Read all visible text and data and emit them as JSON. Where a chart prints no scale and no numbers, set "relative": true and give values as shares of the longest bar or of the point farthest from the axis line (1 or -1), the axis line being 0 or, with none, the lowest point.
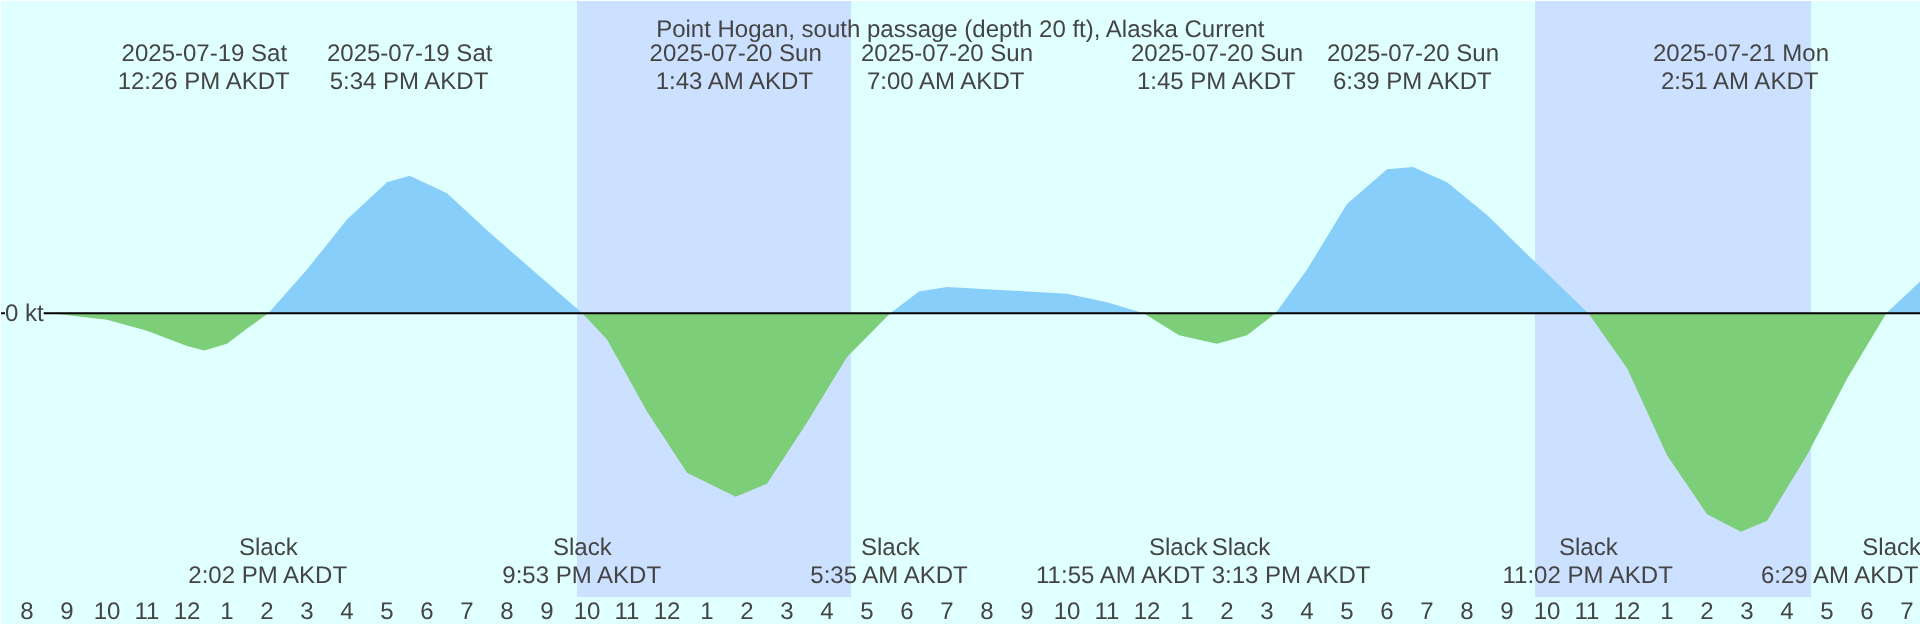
{
  "chart_data": {
    "type": "area",
    "relative": true,
    "title": "Point Hogan, south passage (depth 20 ft), Alaska Current",
    "xlim": [
      "2025-07-19T07:21",
      "2025-07-21T07:21"
    ],
    "xticks": [
      {
        "value": "2025-07-19T08:00",
        "label": "8"
      },
      {
        "value": "2025-07-19T09:00",
        "label": "9"
      },
      {
        "value": "2025-07-19T10:00",
        "label": "10"
      },
      {
        "value": "2025-07-19T11:00",
        "label": "11"
      },
      {
        "value": "2025-07-19T12:00",
        "label": "12"
      },
      {
        "value": "2025-07-19T13:00",
        "label": "1"
      },
      {
        "value": "2025-07-19T14:00",
        "label": "2"
      },
      {
        "value": "2025-07-19T15:00",
        "label": "3"
      },
      {
        "value": "2025-07-19T16:00",
        "label": "4"
      },
      {
        "value": "2025-07-19T17:00",
        "label": "5"
      },
      {
        "value": "2025-07-19T18:00",
        "label": "6"
      },
      {
        "value": "2025-07-19T19:00",
        "label": "7"
      },
      {
        "value": "2025-07-19T20:00",
        "label": "8"
      },
      {
        "value": "2025-07-19T21:00",
        "label": "9"
      },
      {
        "value": "2025-07-19T22:00",
        "label": "10"
      },
      {
        "value": "2025-07-19T23:00",
        "label": "11"
      },
      {
        "value": "2025-07-20T00:00",
        "label": "12"
      },
      {
        "value": "2025-07-20T01:00",
        "label": "1"
      },
      {
        "value": "2025-07-20T02:00",
        "label": "2"
      },
      {
        "value": "2025-07-20T03:00",
        "label": "3"
      },
      {
        "value": "2025-07-20T04:00",
        "label": "4"
      },
      {
        "value": "2025-07-20T05:00",
        "label": "5"
      },
      {
        "value": "2025-07-20T06:00",
        "label": "6"
      },
      {
        "value": "2025-07-20T07:00",
        "label": "7"
      },
      {
        "value": "2025-07-20T08:00",
        "label": "8"
      },
      {
        "value": "2025-07-20T09:00",
        "label": "9"
      },
      {
        "value": "2025-07-20T10:00",
        "label": "10"
      },
      {
        "value": "2025-07-20T11:00",
        "label": "11"
      },
      {
        "value": "2025-07-20T12:00",
        "label": "12"
      },
      {
        "value": "2025-07-20T13:00",
        "label": "1"
      },
      {
        "value": "2025-07-20T14:00",
        "label": "2"
      },
      {
        "value": "2025-07-20T15:00",
        "label": "3"
      },
      {
        "value": "2025-07-20T16:00",
        "label": "4"
      },
      {
        "value": "2025-07-20T17:00",
        "label": "5"
      },
      {
        "value": "2025-07-20T18:00",
        "label": "6"
      },
      {
        "value": "2025-07-20T19:00",
        "label": "7"
      },
      {
        "value": "2025-07-20T20:00",
        "label": "8"
      },
      {
        "value": "2025-07-20T21:00",
        "label": "9"
      },
      {
        "value": "2025-07-20T22:00",
        "label": "10"
      },
      {
        "value": "2025-07-20T23:00",
        "label": "11"
      },
      {
        "value": "2025-07-21T00:00",
        "label": "12"
      },
      {
        "value": "2025-07-21T01:00",
        "label": "1"
      },
      {
        "value": "2025-07-21T02:00",
        "label": "2"
      },
      {
        "value": "2025-07-21T03:00",
        "label": "3"
      },
      {
        "value": "2025-07-21T04:00",
        "label": "4"
      },
      {
        "value": "2025-07-21T05:00",
        "label": "5"
      },
      {
        "value": "2025-07-21T06:00",
        "label": "6"
      },
      {
        "value": "2025-07-21T07:00",
        "label": "7"
      }
    ],
    "series": [
      {
        "color": "#7ccf78",
        "x": [
          "2025-07-19T08:36",
          "2025-07-19T10:00",
          "2025-07-19T11:00",
          "2025-07-19T12:00",
          "2025-07-19T12:26",
          "2025-07-19T13:00",
          "2025-07-19T13:30",
          "2025-07-19T14:02"
        ],
        "values": [
          0,
          -0.03,
          -0.08,
          -0.15,
          -0.17,
          -0.14,
          -0.07,
          0
        ]
      },
      {
        "color": "#87cefa",
        "x": [
          "2025-07-19T14:02",
          "2025-07-19T15:00",
          "2025-07-19T16:00",
          "2025-07-19T17:00",
          "2025-07-19T17:34",
          "2025-07-19T18:30",
          "2025-07-19T19:30",
          "2025-07-19T20:30",
          "2025-07-19T21:53"
        ],
        "values": [
          0,
          0.2,
          0.43,
          0.6,
          0.63,
          0.55,
          0.38,
          0.22,
          0
        ]
      },
      {
        "color": "#7ccf78",
        "x": [
          "2025-07-19T21:53",
          "2025-07-19T22:30",
          "2025-07-19T23:30",
          "2025-07-20T00:30",
          "2025-07-20T01:43",
          "2025-07-20T02:30",
          "2025-07-20T03:30",
          "2025-07-20T04:30",
          "2025-07-20T05:35"
        ],
        "values": [
          0,
          -0.12,
          -0.45,
          -0.73,
          -0.84,
          -0.78,
          -0.5,
          -0.2,
          0
        ]
      },
      {
        "color": "#87cefa",
        "x": [
          "2025-07-20T05:35",
          "2025-07-20T06:18",
          "2025-07-20T07:00",
          "2025-07-20T08:00",
          "2025-07-20T09:00",
          "2025-07-20T10:00",
          "2025-07-20T11:00",
          "2025-07-20T11:55"
        ],
        "values": [
          0,
          0.1,
          0.12,
          0.11,
          0.1,
          0.09,
          0.05,
          0
        ]
      },
      {
        "color": "#7ccf78",
        "x": [
          "2025-07-20T11:55",
          "2025-07-20T12:48",
          "2025-07-20T13:45",
          "2025-07-20T14:30",
          "2025-07-20T15:13"
        ],
        "values": [
          0,
          -0.1,
          -0.14,
          -0.1,
          0
        ]
      },
      {
        "color": "#87cefa",
        "x": [
          "2025-07-20T15:13",
          "2025-07-20T16:00",
          "2025-07-20T17:00",
          "2025-07-20T18:00",
          "2025-07-20T18:39",
          "2025-07-20T19:30",
          "2025-07-20T20:30",
          "2025-07-20T21:30",
          "2025-07-20T23:02"
        ],
        "values": [
          0,
          0.2,
          0.5,
          0.66,
          0.67,
          0.6,
          0.45,
          0.27,
          0
        ]
      },
      {
        "color": "#7ccf78",
        "x": [
          "2025-07-20T23:02",
          "2025-07-21T00:00",
          "2025-07-21T01:00",
          "2025-07-21T02:00",
          "2025-07-21T02:51",
          "2025-07-21T03:30",
          "2025-07-21T04:30",
          "2025-07-21T05:30",
          "2025-07-21T06:29"
        ],
        "values": [
          0,
          -0.25,
          -0.65,
          -0.92,
          -1,
          -0.95,
          -0.65,
          -0.3,
          0
        ]
      },
      {
        "color": "#87cefa",
        "x": [
          "2025-07-21T06:29",
          "2025-07-21T07:21"
        ],
        "values": [
          0,
          0.15
        ]
      }
    ],
    "bands": [
      {
        "axis": "x",
        "from": "2025-07-19T21:45",
        "to": "2025-07-20T04:36",
        "color": "#cce0ff"
      },
      {
        "axis": "x",
        "from": "2025-07-20T21:42",
        "to": "2025-07-21T04:36",
        "color": "#cce0ff"
      }
    ],
    "ref_lines": [
      {
        "axis": "y",
        "value": 0,
        "color": "#000000"
      }
    ],
    "annotations": [
      "0 kt",
      "2025-07-19 Sat\n12:26 PM AKDT",
      "2025-07-19 Sat\n5:34 PM AKDT",
      "2025-07-20 Sun\n1:43 AM AKDT",
      "2025-07-20 Sun\n7:00 AM AKDT",
      "2025-07-20 Sun\n1:45 PM AKDT",
      "2025-07-20 Sun\n6:39 PM AKDT",
      "2025-07-21 Mon\n2:51 AM AKDT",
      "Slack\n2:02 PM AKDT",
      "Slack\n9:53 PM AKDT",
      "Slack\n5:35 AM AKDT",
      "Slack\n11:55 AM AKDT",
      "Slack\n3:13 PM AKDT",
      "Slack\n11:02 PM AKDT",
      "Slack\n6:29 AM AKDT"
    ]
  }
}
